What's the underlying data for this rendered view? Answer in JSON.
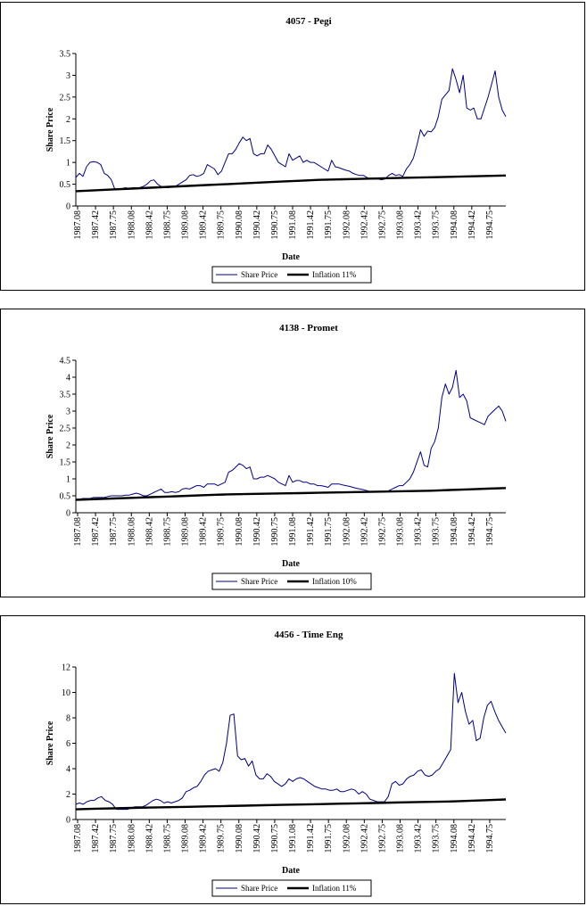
{
  "chart_data": [
    {
      "type": "line",
      "title": "4057 - Pegi",
      "xlabel": "Date",
      "ylabel": "Share Price",
      "ylim": [
        0,
        3.5
      ],
      "ystep": 0.5,
      "yticks": [
        "0",
        "0.5",
        "1",
        "1.5",
        "2",
        "2.5",
        "3",
        "3.5"
      ],
      "x_tick_labels": [
        "1987.08",
        "1987.42",
        "1987.75",
        "1988.08",
        "1988.42",
        "1988.75",
        "1989.08",
        "1989.42",
        "1989.75",
        "1990.08",
        "1990.42",
        "1990.75",
        "1991.08",
        "1991.42",
        "1991.75",
        "1992.08",
        "1992.42",
        "1992.75",
        "1993.08",
        "1993.42",
        "1993.75",
        "1994.08",
        "1994.42",
        "1994.75"
      ],
      "grid": false,
      "legend_position": "bottom",
      "series": [
        {
          "name": "Share Price",
          "color": "#000080",
          "values": [
            0.65,
            0.75,
            0.68,
            0.9,
            1.0,
            1.02,
            1.0,
            0.95,
            0.75,
            0.7,
            0.6,
            0.38,
            0.38,
            0.4,
            0.42,
            0.4,
            0.42,
            0.42,
            0.42,
            0.45,
            0.5,
            0.58,
            0.6,
            0.5,
            0.45,
            0.42,
            0.42,
            0.45,
            0.45,
            0.5,
            0.55,
            0.6,
            0.7,
            0.72,
            0.68,
            0.7,
            0.75,
            0.95,
            0.9,
            0.85,
            0.72,
            0.8,
            1.0,
            1.2,
            1.2,
            1.3,
            1.45,
            1.58,
            1.5,
            1.55,
            1.2,
            1.15,
            1.2,
            1.2,
            1.4,
            1.3,
            1.15,
            1.0,
            0.95,
            0.9,
            1.2,
            1.05,
            1.1,
            1.15,
            1.0,
            1.05,
            1.0,
            1.0,
            0.95,
            0.9,
            0.85,
            0.8,
            1.05,
            0.9,
            0.88,
            0.85,
            0.82,
            0.8,
            0.75,
            0.72,
            0.7,
            0.7,
            0.65,
            0.62,
            0.62,
            0.62,
            0.6,
            0.62,
            0.7,
            0.75,
            0.7,
            0.72,
            0.68,
            0.85,
            0.95,
            1.1,
            1.4,
            1.75,
            1.6,
            1.72,
            1.7,
            1.8,
            2.05,
            2.45,
            2.55,
            2.65,
            3.15,
            2.9,
            2.6,
            3.0,
            2.25,
            2.2,
            2.25,
            2.0,
            2.0,
            2.25,
            2.5,
            2.8,
            3.1,
            2.5,
            2.2,
            2.05
          ]
        },
        {
          "name": "Inflation 11%",
          "color": "#000000",
          "values": [
            0.34,
            0.36,
            0.38,
            0.4,
            0.42,
            0.44,
            0.46,
            0.48,
            0.5,
            0.52,
            0.54,
            0.56,
            0.58,
            0.6,
            0.61,
            0.62,
            0.63,
            0.64,
            0.65,
            0.66,
            0.67,
            0.68,
            0.69,
            0.7
          ]
        }
      ]
    },
    {
      "type": "line",
      "title": "4138 - Promet",
      "xlabel": "Date",
      "ylabel": "Share Price",
      "ylim": [
        0,
        4.5
      ],
      "ystep": 0.5,
      "yticks": [
        "0",
        "0.5",
        "1",
        "1.5",
        "2",
        "2.5",
        "3",
        "3.5",
        "4",
        "4.5"
      ],
      "x_tick_labels": [
        "1987.08",
        "1987.42",
        "1987.75",
        "1988.08",
        "1988.42",
        "1988.75",
        "1989.08",
        "1989.42",
        "1989.75",
        "1990.08",
        "1990.42",
        "1990.75",
        "1991.08",
        "1991.42",
        "1991.75",
        "1992.08",
        "1992.42",
        "1992.75",
        "1993.08",
        "1993.42",
        "1993.75",
        "1994.08",
        "1994.42",
        "1994.75"
      ],
      "grid": false,
      "legend_position": "bottom",
      "series": [
        {
          "name": "Share Price",
          "color": "#000080",
          "values": [
            0.4,
            0.4,
            0.42,
            0.42,
            0.42,
            0.45,
            0.45,
            0.45,
            0.45,
            0.48,
            0.5,
            0.5,
            0.5,
            0.5,
            0.52,
            0.52,
            0.55,
            0.58,
            0.55,
            0.5,
            0.5,
            0.55,
            0.6,
            0.65,
            0.7,
            0.6,
            0.6,
            0.62,
            0.6,
            0.62,
            0.7,
            0.72,
            0.7,
            0.75,
            0.8,
            0.8,
            0.75,
            0.85,
            0.85,
            0.85,
            0.8,
            0.85,
            0.9,
            1.2,
            1.25,
            1.35,
            1.45,
            1.4,
            1.3,
            1.35,
            1.0,
            1.0,
            1.05,
            1.05,
            1.1,
            1.05,
            1.0,
            0.9,
            0.85,
            0.8,
            1.1,
            0.9,
            0.95,
            0.95,
            0.9,
            0.9,
            0.85,
            0.85,
            0.8,
            0.8,
            0.78,
            0.75,
            0.85,
            0.85,
            0.85,
            0.82,
            0.8,
            0.78,
            0.75,
            0.72,
            0.7,
            0.68,
            0.65,
            0.62,
            0.62,
            0.62,
            0.62,
            0.62,
            0.65,
            0.7,
            0.75,
            0.8,
            0.8,
            0.9,
            1.0,
            1.2,
            1.5,
            1.8,
            1.4,
            1.35,
            1.9,
            2.1,
            2.5,
            3.4,
            3.8,
            3.5,
            3.7,
            4.2,
            3.4,
            3.5,
            3.3,
            2.8,
            2.75,
            2.7,
            2.65,
            2.6,
            2.85,
            2.95,
            3.05,
            3.15,
            3.0,
            2.7
          ]
        },
        {
          "name": "Inflation 10%",
          "color": "#000000",
          "values": [
            0.38,
            0.4,
            0.42,
            0.44,
            0.46,
            0.48,
            0.5,
            0.52,
            0.54,
            0.55,
            0.56,
            0.57,
            0.58,
            0.59,
            0.6,
            0.61,
            0.62,
            0.63,
            0.64,
            0.65,
            0.67,
            0.69,
            0.71,
            0.73
          ]
        }
      ]
    },
    {
      "type": "line",
      "title": "4456 - Time Eng",
      "xlabel": "Date",
      "ylabel": "Share Price",
      "ylim": [
        0,
        12
      ],
      "ystep": 2,
      "yticks": [
        "0",
        "2",
        "4",
        "6",
        "8",
        "10",
        "12"
      ],
      "x_tick_labels": [
        "1987.08",
        "1987.42",
        "1987.75",
        "1988.08",
        "1988.42",
        "1988.75",
        "1989.08",
        "1989.42",
        "1989.75",
        "1990.08",
        "1990.42",
        "1990.75",
        "1991.08",
        "1991.42",
        "1991.75",
        "1992.08",
        "1992.42",
        "1992.75",
        "1993.08",
        "1993.42",
        "1993.75",
        "1994.08",
        "1994.42",
        "1994.75"
      ],
      "grid": false,
      "legend_position": "bottom",
      "series": [
        {
          "name": "Share Price",
          "color": "#000080",
          "values": [
            1.2,
            1.3,
            1.2,
            1.4,
            1.5,
            1.5,
            1.7,
            1.8,
            1.5,
            1.4,
            1.2,
            0.8,
            0.8,
            0.8,
            0.8,
            0.9,
            1.0,
            1.0,
            1.0,
            1.1,
            1.3,
            1.5,
            1.6,
            1.5,
            1.3,
            1.4,
            1.3,
            1.4,
            1.5,
            1.7,
            2.2,
            2.3,
            2.5,
            2.6,
            3.0,
            3.5,
            3.8,
            3.9,
            4.0,
            3.8,
            4.5,
            6.0,
            8.2,
            8.3,
            5.0,
            4.7,
            4.8,
            4.2,
            4.6,
            3.5,
            3.2,
            3.2,
            3.6,
            3.4,
            3.0,
            2.8,
            2.6,
            2.8,
            3.2,
            3.0,
            3.2,
            3.3,
            3.2,
            3.0,
            2.8,
            2.6,
            2.5,
            2.4,
            2.4,
            2.3,
            2.3,
            2.4,
            2.2,
            2.2,
            2.3,
            2.4,
            2.3,
            2.0,
            2.2,
            2.0,
            1.6,
            1.5,
            1.4,
            1.4,
            1.4,
            1.8,
            2.8,
            3.0,
            2.7,
            2.8,
            3.2,
            3.4,
            3.5,
            3.8,
            3.9,
            3.5,
            3.4,
            3.5,
            3.8,
            4.0,
            4.5,
            5.0,
            5.5,
            11.5,
            9.2,
            10.0,
            8.5,
            7.5,
            7.8,
            6.2,
            6.4,
            8.0,
            9.0,
            9.3,
            8.5,
            7.8,
            7.3,
            6.8
          ]
        },
        {
          "name": "Inflation 11%",
          "color": "#000000",
          "values": [
            0.8,
            0.85,
            0.88,
            0.91,
            0.94,
            0.97,
            1.0,
            1.03,
            1.06,
            1.09,
            1.12,
            1.15,
            1.18,
            1.21,
            1.24,
            1.27,
            1.3,
            1.33,
            1.36,
            1.39,
            1.42,
            1.47,
            1.52,
            1.58
          ]
        }
      ]
    }
  ]
}
